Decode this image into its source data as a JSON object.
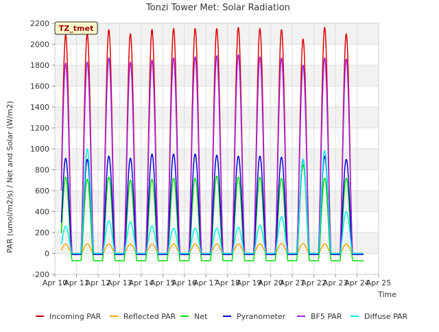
{
  "chart_data": {
    "type": "line",
    "title": "Tonzi Tower Met: Solar Radiation",
    "xlabel": "Time",
    "ylabel": "PAR (umol/m2/s) / Net and Solar (W/m2)",
    "annotation": "TZ_tmet",
    "ylim": [
      -200,
      2200
    ],
    "yticks": [
      -200,
      0,
      200,
      400,
      600,
      800,
      1000,
      1200,
      1400,
      1600,
      1800,
      2000,
      2200
    ],
    "xlim": [
      10,
      25
    ],
    "xticks": [
      {
        "value": 10,
        "label": "Apr 10"
      },
      {
        "value": 11,
        "label": "Apr 11"
      },
      {
        "value": 12,
        "label": "Apr 12"
      },
      {
        "value": 13,
        "label": "Apr 13"
      },
      {
        "value": 14,
        "label": "Apr 14"
      },
      {
        "value": 15,
        "label": "Apr 15"
      },
      {
        "value": 16,
        "label": "Apr 16"
      },
      {
        "value": 17,
        "label": "Apr 17"
      },
      {
        "value": 18,
        "label": "Apr 18"
      },
      {
        "value": 19,
        "label": "Apr 19"
      },
      {
        "value": 20,
        "label": "Apr 20"
      },
      {
        "value": 21,
        "label": "Apr 21"
      },
      {
        "value": 22,
        "label": "Apr 22"
      },
      {
        "value": 23,
        "label": "Apr 23"
      },
      {
        "value": 24,
        "label": "Apr 24"
      },
      {
        "value": 25,
        "label": "Apr 25"
      }
    ],
    "grid": true,
    "legend_position": "bottom",
    "day_range": [
      10.3,
      24.3
    ],
    "peak_center_offset": 0.5,
    "peak_half_width": 0.3,
    "series": [
      {
        "name": "Incoming PAR",
        "color": "#dd0000",
        "night": 0,
        "peaks": [
          2090,
          2100,
          2140,
          2100,
          2140,
          2150,
          2150,
          2150,
          2160,
          2150,
          2140,
          2050,
          2160,
          2100
        ]
      },
      {
        "name": "Reflected PAR",
        "color": "#ffa500",
        "night": 0,
        "peaks": [
          90,
          90,
          90,
          90,
          90,
          90,
          90,
          90,
          90,
          90,
          95,
          95,
          90,
          90
        ]
      },
      {
        "name": "Net",
        "color": "#00dd00",
        "night": -70,
        "peaks": [
          730,
          710,
          730,
          700,
          710,
          720,
          720,
          740,
          730,
          730,
          720,
          850,
          720,
          720
        ]
      },
      {
        "name": "Pyranometer",
        "color": "#0000cc",
        "night": -10,
        "peaks": [
          910,
          900,
          930,
          910,
          950,
          950,
          950,
          940,
          930,
          930,
          920,
          900,
          930,
          900
        ]
      },
      {
        "name": "BF5 PAR",
        "color": "#9a22ee",
        "night": 0,
        "peaks": [
          1820,
          1830,
          1870,
          1830,
          1850,
          1870,
          1880,
          1890,
          1900,
          1880,
          1870,
          1800,
          1870,
          1860
        ]
      },
      {
        "name": "Diffuse PAR",
        "color": "#00eeee",
        "night": 0,
        "peaks": [
          260,
          1000,
          310,
          300,
          260,
          240,
          240,
          240,
          250,
          270,
          350,
          900,
          980,
          400
        ]
      }
    ]
  }
}
